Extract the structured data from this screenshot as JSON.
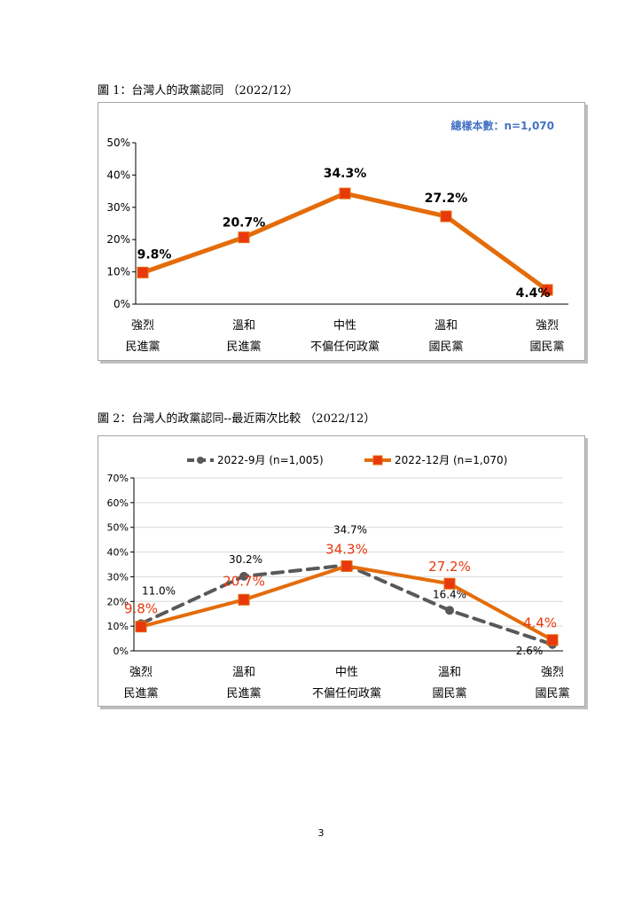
{
  "page": {
    "number": "3"
  },
  "figures": [
    {
      "caption": "圖 1：台灣人的政黨認同 （2022/12）"
    },
    {
      "caption": "圖 2：台灣人的政黨認同--最近兩次比較 （2022/12）"
    }
  ],
  "chart_data": [
    {
      "type": "line",
      "title": "",
      "sample_note": "總樣本數：n=1,070",
      "categories": [
        [
          "強烈",
          "民進黨"
        ],
        [
          "溫和",
          "民進黨"
        ],
        [
          "中性",
          "不偏任何政黨"
        ],
        [
          "溫和",
          "國民黨"
        ],
        [
          "強烈",
          "國民黨"
        ]
      ],
      "series": [
        {
          "values": [
            9.8,
            20.7,
            34.3,
            27.2,
            4.4
          ],
          "labels": [
            "9.8%",
            "20.7%",
            "34.3%",
            "27.2%",
            "4.4%"
          ],
          "color": "#e46c0a"
        }
      ],
      "ylim": [
        0,
        50
      ],
      "yticks": [
        "0%",
        "10%",
        "20%",
        "30%",
        "40%",
        "50%"
      ],
      "grid": false,
      "legend": "none"
    },
    {
      "type": "line",
      "title": "",
      "categories": [
        [
          "強烈",
          "民進黨"
        ],
        [
          "溫和",
          "民進黨"
        ],
        [
          "中性",
          "不偏任何政黨"
        ],
        [
          "溫和",
          "國民黨"
        ],
        [
          "強烈",
          "國民黨"
        ]
      ],
      "series": [
        {
          "name": "2022-9月 (n=1,005)",
          "values": [
            11.0,
            30.2,
            34.7,
            16.4,
            2.6
          ],
          "labels": [
            "11.0%",
            "30.2%",
            "34.7%",
            "16.4%",
            "2.6%"
          ],
          "color": "#595959",
          "dashed": true,
          "marker": "circle"
        },
        {
          "name": "2022-12月 (n=1,070)",
          "values": [
            9.8,
            20.7,
            34.3,
            27.2,
            4.4
          ],
          "labels": [
            "9.8%",
            "20.7%",
            "34.3%",
            "27.2%",
            "4.4%"
          ],
          "color": "#e46c0a",
          "label_color": "#e8380d",
          "dashed": false,
          "marker": "square"
        }
      ],
      "ylim": [
        0,
        70
      ],
      "yticks": [
        "0%",
        "10%",
        "20%",
        "30%",
        "40%",
        "50%",
        "60%",
        "70%"
      ],
      "grid": true,
      "legend": "top"
    }
  ]
}
